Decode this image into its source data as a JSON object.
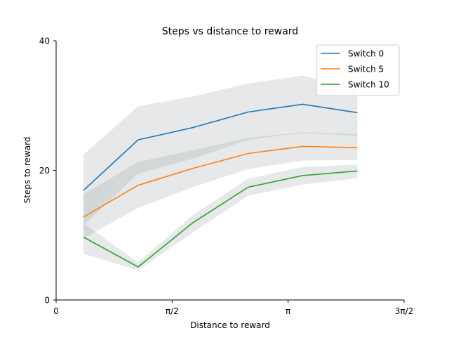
{
  "chart_data": {
    "type": "line",
    "title": "Steps vs distance to reward",
    "xlabel": "Distance to reward",
    "ylabel": "Steps to reward",
    "xlim": [
      0,
      4.712389
    ],
    "ylim": [
      0,
      40
    ],
    "x_ticks": [
      {
        "value": 0,
        "label": "0"
      },
      {
        "value": 1.570796,
        "label": "π/2"
      },
      {
        "value": 3.141593,
        "label": "π"
      },
      {
        "value": 4.712389,
        "label": "3π/2"
      }
    ],
    "y_ticks": [
      {
        "value": 0,
        "label": "0"
      },
      {
        "value": 20,
        "label": "20"
      },
      {
        "value": 40,
        "label": "40"
      }
    ],
    "x": [
      0.37,
      1.11,
      1.85,
      2.6,
      3.34,
      4.08
    ],
    "series": [
      {
        "name": "Switch 0",
        "color": "#1f77b4",
        "values": [
          16.9,
          24.7,
          26.6,
          29.0,
          30.2,
          28.9
        ],
        "lower": [
          11.5,
          19.5,
          21.8,
          24.7,
          25.8,
          25.3
        ],
        "upper": [
          22.4,
          29.9,
          31.4,
          33.4,
          34.6,
          32.6
        ]
      },
      {
        "name": "Switch 5",
        "color": "#ff7f0e",
        "values": [
          12.8,
          17.7,
          20.3,
          22.6,
          23.7,
          23.5
        ],
        "lower": [
          9.5,
          14.2,
          17.4,
          20.2,
          21.5,
          21.6
        ],
        "upper": [
          16.3,
          21.3,
          23.1,
          25.0,
          25.9,
          25.6
        ]
      },
      {
        "name": "Switch 10",
        "color": "#2ca02c",
        "values": [
          9.7,
          5.1,
          11.9,
          17.4,
          19.2,
          19.9
        ],
        "lower": [
          7.1,
          4.6,
          10.4,
          16.1,
          17.8,
          18.8
        ],
        "upper": [
          11.8,
          5.8,
          13.1,
          18.7,
          20.5,
          20.9
        ]
      }
    ],
    "band_color": "#9aa5a6",
    "band_opacity": 0.25,
    "legend": {
      "position": "top-right",
      "entries": [
        "Switch 0",
        "Switch 5",
        "Switch 10"
      ]
    },
    "grid": false
  }
}
